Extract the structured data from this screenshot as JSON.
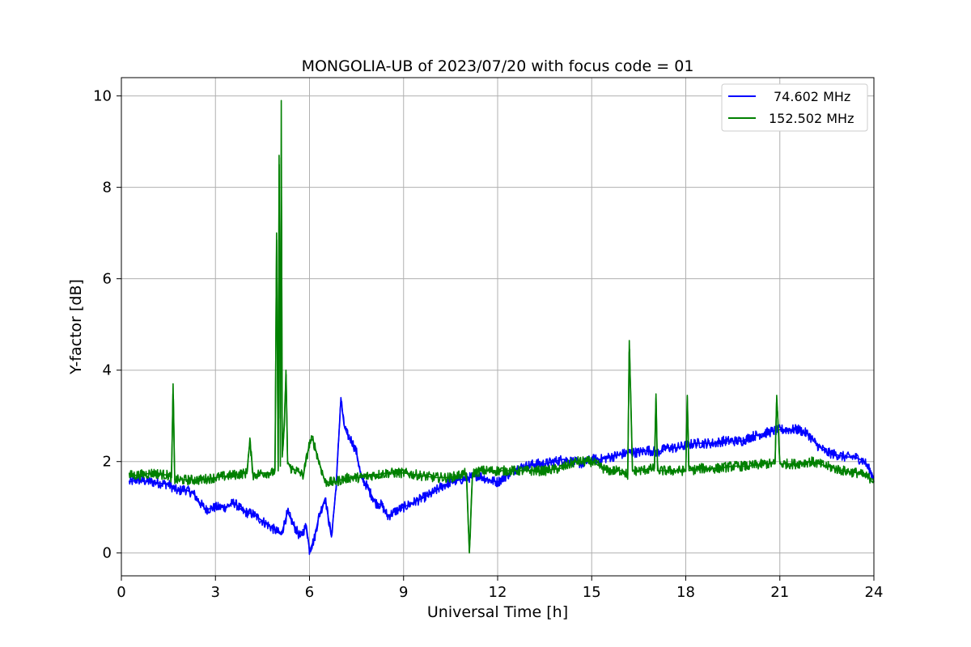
{
  "chart_data": {
    "type": "line",
    "title": "MONGOLIA-UB of 2023/07/20 with focus code = 01",
    "xlabel": "Universal Time [h]",
    "ylabel": "Y-factor [dB]",
    "xlim": [
      0,
      24
    ],
    "ylim": [
      -0.5,
      10.4
    ],
    "xticks": [
      0,
      3,
      6,
      9,
      12,
      15,
      18,
      21,
      24
    ],
    "yticks": [
      0,
      2,
      4,
      6,
      8,
      10
    ],
    "grid": true,
    "legend_position": "top-right",
    "series": [
      {
        "name": "74.602 MHz",
        "color": "#0000ff",
        "x": [
          0.25,
          0.5,
          1.0,
          1.5,
          1.8,
          2.0,
          2.3,
          2.5,
          2.7,
          3.0,
          3.3,
          3.6,
          3.9,
          4.2,
          4.5,
          4.7,
          4.9,
          5.0,
          5.1,
          5.3,
          5.5,
          5.7,
          5.9,
          6.0,
          6.15,
          6.3,
          6.5,
          6.7,
          6.85,
          7.0,
          7.1,
          7.2,
          7.35,
          7.5,
          7.65,
          7.8,
          7.95,
          8.1,
          8.3,
          8.5,
          8.7,
          9.0,
          9.3,
          9.6,
          9.9,
          10.2,
          10.5,
          10.8,
          11.1,
          11.4,
          11.7,
          12.0,
          12.3,
          12.6,
          12.9,
          13.2,
          13.5,
          13.8,
          14.1,
          14.4,
          14.7,
          15.0,
          15.3,
          15.6,
          15.9,
          16.2,
          16.5,
          16.8,
          17.1,
          17.4,
          17.7,
          18.0,
          18.3,
          18.6,
          18.9,
          19.2,
          19.5,
          19.8,
          20.1,
          20.4,
          20.7,
          21.0,
          21.3,
          21.6,
          21.9,
          22.2,
          22.5,
          22.8,
          23.1,
          23.4,
          23.7,
          24.0
        ],
        "y": [
          1.55,
          1.6,
          1.55,
          1.5,
          1.35,
          1.4,
          1.3,
          1.1,
          0.95,
          1.0,
          1.0,
          1.1,
          0.9,
          0.85,
          0.7,
          0.6,
          0.5,
          0.45,
          0.4,
          0.9,
          0.6,
          0.35,
          0.6,
          0.05,
          0.3,
          0.8,
          1.2,
          0.35,
          1.45,
          3.4,
          2.8,
          2.6,
          2.45,
          2.2,
          1.65,
          1.5,
          1.3,
          1.1,
          1.05,
          0.8,
          0.9,
          1.0,
          1.1,
          1.2,
          1.3,
          1.45,
          1.55,
          1.6,
          1.65,
          1.7,
          1.6,
          1.55,
          1.7,
          1.85,
          1.9,
          1.95,
          1.95,
          2.0,
          2.05,
          2.0,
          1.95,
          2.05,
          2.05,
          2.1,
          2.15,
          2.2,
          2.2,
          2.25,
          2.2,
          2.3,
          2.3,
          2.35,
          2.4,
          2.4,
          2.4,
          2.45,
          2.45,
          2.45,
          2.55,
          2.6,
          2.65,
          2.7,
          2.7,
          2.7,
          2.6,
          2.35,
          2.2,
          2.15,
          2.1,
          2.1,
          2.0,
          1.65
        ]
      },
      {
        "name": "152.502 MHz",
        "color": "#008000",
        "x": [
          0.25,
          0.5,
          1.0,
          1.5,
          1.6,
          1.65,
          1.7,
          2.0,
          2.5,
          3.0,
          3.5,
          4.0,
          4.1,
          4.2,
          4.5,
          4.8,
          4.9,
          4.95,
          5.0,
          5.03,
          5.07,
          5.1,
          5.13,
          5.2,
          5.25,
          5.3,
          5.4,
          5.6,
          5.8,
          6.0,
          6.1,
          6.3,
          6.5,
          6.8,
          7.0,
          7.3,
          7.6,
          8.0,
          8.5,
          9.0,
          9.5,
          10.0,
          10.5,
          11.0,
          11.1,
          11.2,
          11.5,
          12.0,
          12.5,
          13.0,
          13.5,
          14.0,
          14.5,
          15.0,
          15.5,
          16.0,
          16.15,
          16.2,
          16.3,
          16.5,
          17.0,
          17.05,
          17.1,
          17.5,
          18.0,
          18.05,
          18.1,
          18.5,
          19.0,
          19.5,
          20.0,
          20.5,
          20.85,
          20.9,
          21.0,
          21.5,
          22.0,
          22.5,
          23.0,
          23.5,
          24.0
        ],
        "y": [
          1.7,
          1.7,
          1.75,
          1.7,
          1.65,
          3.7,
          1.6,
          1.6,
          1.6,
          1.65,
          1.7,
          1.75,
          2.45,
          1.7,
          1.75,
          1.75,
          1.8,
          7.0,
          1.85,
          8.7,
          1.9,
          9.9,
          2.1,
          2.8,
          4.0,
          2.0,
          1.85,
          1.8,
          1.7,
          2.4,
          2.5,
          2.0,
          1.55,
          1.55,
          1.6,
          1.65,
          1.65,
          1.7,
          1.75,
          1.75,
          1.7,
          1.65,
          1.65,
          1.75,
          0.0,
          1.75,
          1.8,
          1.8,
          1.8,
          1.8,
          1.8,
          1.85,
          2.0,
          2.0,
          1.8,
          1.8,
          1.7,
          4.65,
          1.8,
          1.8,
          1.85,
          3.4,
          1.8,
          1.8,
          1.8,
          3.45,
          1.8,
          1.85,
          1.85,
          1.9,
          1.9,
          1.95,
          1.95,
          3.45,
          1.95,
          1.95,
          2.0,
          1.9,
          1.8,
          1.75,
          1.6
        ]
      }
    ]
  }
}
